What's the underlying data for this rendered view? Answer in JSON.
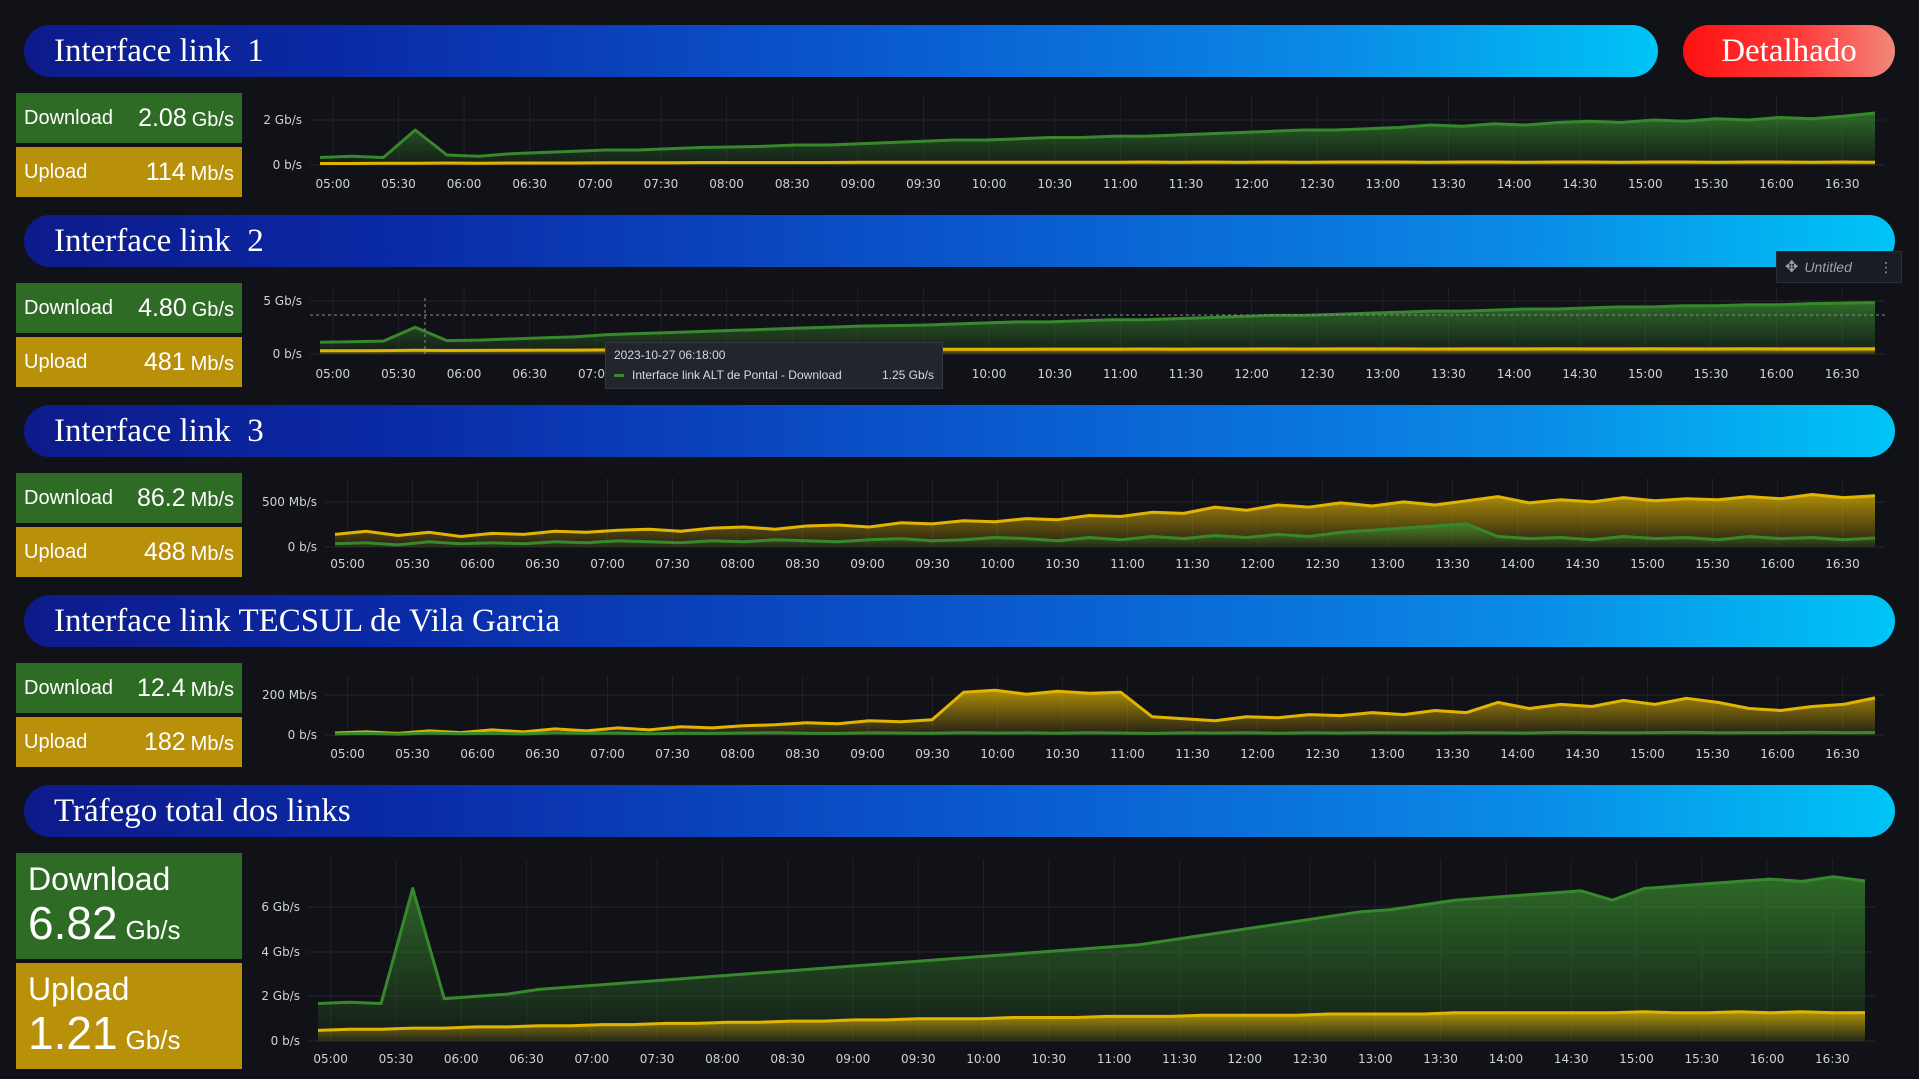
{
  "header": {
    "detail_button": "Detalhado"
  },
  "time_labels": [
    "05:00",
    "05:30",
    "06:00",
    "06:30",
    "07:00",
    "07:30",
    "08:00",
    "08:30",
    "09:00",
    "09:30",
    "10:00",
    "10:30",
    "11:00",
    "11:30",
    "12:00",
    "12:30",
    "13:00",
    "13:30",
    "14:00",
    "14:30",
    "15:00",
    "15:30",
    "16:00",
    "16:30"
  ],
  "panels": [
    {
      "title": "Interface link  1",
      "download": {
        "label": "Download",
        "value": "2.08",
        "unit": "Gb/s"
      },
      "upload": {
        "label": "Upload",
        "value": "114",
        "unit": "Mb/s"
      },
      "y_ticks": [
        "2 Gb/s",
        "0 b/s"
      ]
    },
    {
      "title": "Interface link  2",
      "download": {
        "label": "Download",
        "value": "4.80",
        "unit": "Gb/s"
      },
      "upload": {
        "label": "Upload",
        "value": "481",
        "unit": "Mb/s"
      },
      "y_ticks": [
        "5 Gb/s",
        "0 b/s"
      ]
    },
    {
      "title": "Interface link  3",
      "download": {
        "label": "Download",
        "value": "86.2",
        "unit": "Mb/s"
      },
      "upload": {
        "label": "Upload",
        "value": "488",
        "unit": "Mb/s"
      },
      "y_ticks": [
        "500 Mb/s",
        "0 b/s"
      ]
    },
    {
      "title": "Interface link TECSUL de Vila Garcia",
      "download": {
        "label": "Download",
        "value": "12.4",
        "unit": "Mb/s"
      },
      "upload": {
        "label": "Upload",
        "value": "182",
        "unit": "Mb/s"
      },
      "y_ticks": [
        "200 Mb/s",
        "0 b/s"
      ]
    },
    {
      "title": "Tráfego total dos links",
      "download": {
        "label": "Download",
        "value": "6.82",
        "unit": "Gb/s"
      },
      "upload": {
        "label": "Upload",
        "value": "1.21",
        "unit": "Gb/s"
      },
      "y_ticks": [
        "6 Gb/s",
        "4 Gb/s",
        "2 Gb/s",
        "0 b/s"
      ]
    }
  ],
  "panel_menu": {
    "title": "Untitled",
    "move_icon": "move-icon",
    "menu_icon": "kebab-menu-icon"
  },
  "tooltip": {
    "time": "2023-10-27 06:18:00",
    "series": "Interface link ALT de Pontal - Download",
    "value": "1.25 Gb/s"
  },
  "colors": {
    "download": "#37872d",
    "upload": "#e0b400",
    "banner_start": "#0d1a8a",
    "banner_end": "#00c4f6",
    "detail_button": "#ff2020"
  },
  "chart_data": [
    {
      "type": "area",
      "title": "Interface link  1",
      "y_unit": "Gb/s",
      "ylim": [
        0,
        2.6
      ],
      "x_start": "05:00",
      "x_end": "16:45",
      "series": [
        {
          "name": "Download",
          "values": [
            0.3,
            0.35,
            0.3,
            1.4,
            0.4,
            0.35,
            0.45,
            0.5,
            0.55,
            0.6,
            0.6,
            0.65,
            0.7,
            0.72,
            0.75,
            0.8,
            0.8,
            0.85,
            0.9,
            0.95,
            1.0,
            1.0,
            1.05,
            1.1,
            1.1,
            1.15,
            1.15,
            1.2,
            1.25,
            1.3,
            1.35,
            1.4,
            1.4,
            1.45,
            1.5,
            1.6,
            1.55,
            1.65,
            1.6,
            1.7,
            1.75,
            1.7,
            1.8,
            1.75,
            1.85,
            1.8,
            1.9,
            1.85,
            1.95,
            2.08
          ]
        },
        {
          "name": "Upload",
          "values": [
            0.06,
            0.06,
            0.07,
            0.07,
            0.08,
            0.07,
            0.08,
            0.08,
            0.08,
            0.09,
            0.09,
            0.09,
            0.1,
            0.1,
            0.1,
            0.1,
            0.1,
            0.11,
            0.11,
            0.11,
            0.11,
            0.11,
            0.11,
            0.11,
            0.11,
            0.11,
            0.12,
            0.11,
            0.12,
            0.11,
            0.12,
            0.11,
            0.12,
            0.12,
            0.12,
            0.11,
            0.12,
            0.12,
            0.11,
            0.12,
            0.12,
            0.11,
            0.12,
            0.12,
            0.11,
            0.12,
            0.12,
            0.11,
            0.12,
            0.114
          ]
        }
      ]
    },
    {
      "type": "area",
      "title": "Interface link  2",
      "y_unit": "Gb/s",
      "ylim": [
        0,
        5.6
      ],
      "x_start": "05:00",
      "x_end": "16:45",
      "series": [
        {
          "name": "Download",
          "values": [
            1.1,
            1.15,
            1.2,
            2.5,
            1.25,
            1.3,
            1.4,
            1.5,
            1.6,
            1.8,
            1.9,
            2.0,
            2.1,
            2.2,
            2.3,
            2.4,
            2.5,
            2.6,
            2.65,
            2.7,
            2.8,
            2.9,
            3.0,
            3.0,
            3.1,
            3.2,
            3.2,
            3.3,
            3.4,
            3.5,
            3.6,
            3.6,
            3.7,
            3.8,
            3.9,
            4.0,
            4.0,
            4.1,
            4.2,
            4.2,
            4.3,
            4.4,
            4.4,
            4.5,
            4.5,
            4.6,
            4.6,
            4.7,
            4.75,
            4.8
          ]
        },
        {
          "name": "Upload",
          "values": [
            0.3,
            0.3,
            0.32,
            0.35,
            0.33,
            0.34,
            0.35,
            0.36,
            0.36,
            0.38,
            0.38,
            0.4,
            0.4,
            0.4,
            0.42,
            0.42,
            0.42,
            0.44,
            0.44,
            0.44,
            0.45,
            0.45,
            0.45,
            0.46,
            0.46,
            0.46,
            0.47,
            0.46,
            0.47,
            0.47,
            0.48,
            0.47,
            0.48,
            0.48,
            0.48,
            0.47,
            0.48,
            0.48,
            0.48,
            0.49,
            0.48,
            0.48,
            0.49,
            0.48,
            0.48,
            0.49,
            0.48,
            0.48,
            0.48,
            0.481
          ]
        }
      ]
    },
    {
      "type": "area",
      "title": "Interface link  3",
      "y_unit": "Mb/s",
      "ylim": [
        0,
        600
      ],
      "x_start": "05:00",
      "x_end": "16:45",
      "series": [
        {
          "name": "Upload",
          "values": [
            120,
            150,
            110,
            140,
            100,
            130,
            120,
            150,
            140,
            160,
            170,
            150,
            180,
            190,
            170,
            200,
            210,
            190,
            230,
            220,
            250,
            240,
            270,
            260,
            300,
            290,
            330,
            320,
            380,
            350,
            400,
            380,
            420,
            390,
            430,
            400,
            440,
            480,
            420,
            450,
            430,
            470,
            440,
            460,
            450,
            480,
            460,
            500,
            470,
            488
          ]
        },
        {
          "name": "Download",
          "values": [
            30,
            40,
            20,
            50,
            30,
            40,
            30,
            50,
            40,
            60,
            50,
            40,
            60,
            50,
            70,
            60,
            50,
            70,
            80,
            60,
            70,
            90,
            80,
            60,
            90,
            70,
            100,
            80,
            110,
            90,
            120,
            100,
            140,
            160,
            180,
            200,
            220,
            100,
            80,
            90,
            70,
            100,
            80,
            90,
            70,
            100,
            80,
            90,
            70,
            86.2
          ]
        }
      ]
    },
    {
      "type": "area",
      "title": "Interface link TECSUL de Vila Garcia",
      "y_unit": "Mb/s",
      "ylim": [
        0,
        260
      ],
      "x_start": "05:00",
      "x_end": "16:45",
      "series": [
        {
          "name": "Upload",
          "values": [
            10,
            15,
            8,
            20,
            12,
            25,
            15,
            30,
            20,
            35,
            25,
            40,
            35,
            45,
            50,
            60,
            55,
            70,
            65,
            75,
            210,
            220,
            200,
            215,
            205,
            210,
            90,
            80,
            70,
            90,
            85,
            100,
            95,
            110,
            100,
            120,
            110,
            160,
            130,
            150,
            140,
            170,
            150,
            180,
            160,
            130,
            120,
            140,
            150,
            182
          ]
        },
        {
          "name": "Download",
          "values": [
            5,
            8,
            4,
            10,
            6,
            9,
            5,
            12,
            8,
            10,
            6,
            9,
            8,
            10,
            12,
            9,
            8,
            11,
            10,
            9,
            12,
            10,
            11,
            9,
            12,
            10,
            8,
            11,
            10,
            12,
            9,
            11,
            10,
            12,
            11,
            10,
            12,
            11,
            10,
            13,
            12,
            11,
            12,
            13,
            11,
            12,
            12,
            13,
            12,
            12.4
          ]
        }
      ]
    },
    {
      "type": "area",
      "title": "Tráfego total dos links",
      "y_unit": "Gb/s",
      "ylim": [
        0,
        7.5
      ],
      "x_start": "05:00",
      "x_end": "16:45",
      "series": [
        {
          "name": "Download",
          "values": [
            1.6,
            1.65,
            1.6,
            6.5,
            1.8,
            1.9,
            2.0,
            2.2,
            2.3,
            2.4,
            2.5,
            2.6,
            2.7,
            2.8,
            2.9,
            3.0,
            3.1,
            3.2,
            3.3,
            3.4,
            3.5,
            3.6,
            3.7,
            3.8,
            3.9,
            4.0,
            4.1,
            4.3,
            4.5,
            4.7,
            4.9,
            5.1,
            5.3,
            5.5,
            5.6,
            5.8,
            6.0,
            6.1,
            6.2,
            6.3,
            6.4,
            6.0,
            6.5,
            6.6,
            6.7,
            6.8,
            6.9,
            6.8,
            7.0,
            6.82
          ]
        },
        {
          "name": "Upload",
          "values": [
            0.45,
            0.5,
            0.5,
            0.55,
            0.55,
            0.6,
            0.6,
            0.65,
            0.65,
            0.7,
            0.7,
            0.75,
            0.75,
            0.8,
            0.8,
            0.85,
            0.85,
            0.9,
            0.9,
            0.95,
            0.95,
            0.95,
            1.0,
            1.0,
            1.0,
            1.05,
            1.05,
            1.05,
            1.1,
            1.1,
            1.1,
            1.1,
            1.15,
            1.15,
            1.15,
            1.15,
            1.2,
            1.2,
            1.2,
            1.2,
            1.2,
            1.2,
            1.25,
            1.2,
            1.2,
            1.25,
            1.2,
            1.25,
            1.2,
            1.21
          ]
        }
      ]
    }
  ]
}
